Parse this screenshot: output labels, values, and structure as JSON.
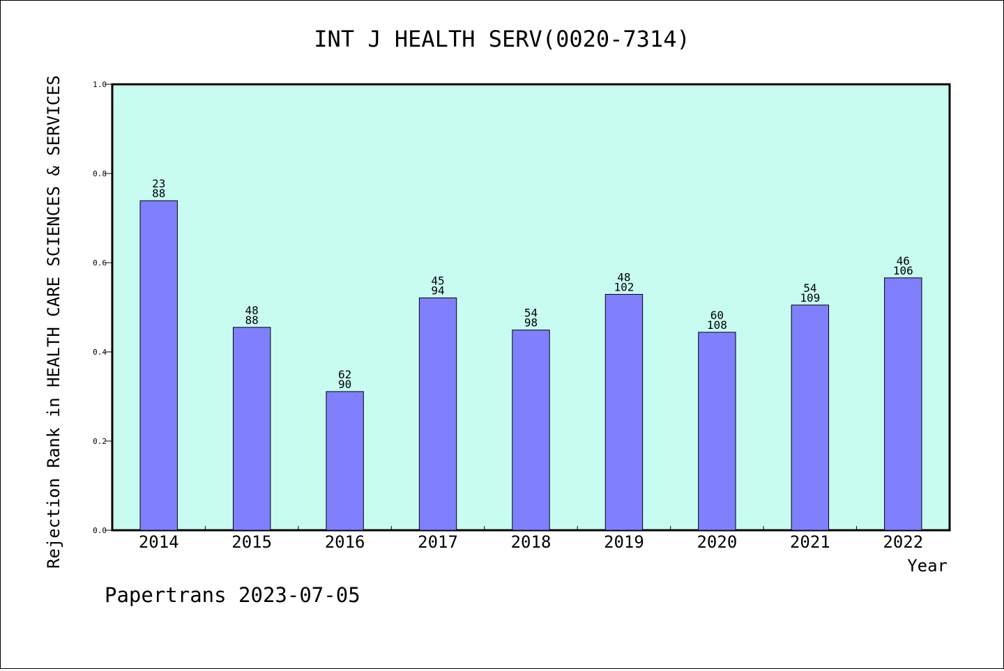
{
  "chart_data": {
    "type": "bar",
    "title": "INT J HEALTH SERV(0020-7314)",
    "xlabel": "Year",
    "ylabel": "Rejection Rank in HEALTH CARE SCIENCES & SERVICES",
    "footer": "Papertrans 2023-07-05",
    "categories": [
      "2014",
      "2015",
      "2016",
      "2017",
      "2018",
      "2019",
      "2020",
      "2021",
      "2022"
    ],
    "values": [
      0.739,
      0.455,
      0.311,
      0.521,
      0.449,
      0.529,
      0.444,
      0.505,
      0.566
    ],
    "rank_labels": [
      {
        "rank": "23",
        "total": "88"
      },
      {
        "rank": "48",
        "total": "88"
      },
      {
        "rank": "62",
        "total": "90"
      },
      {
        "rank": "45",
        "total": "94"
      },
      {
        "rank": "54",
        "total": "98"
      },
      {
        "rank": "48",
        "total": "102"
      },
      {
        "rank": "60",
        "total": "108"
      },
      {
        "rank": "54",
        "total": "109"
      },
      {
        "rank": "46",
        "total": "106"
      }
    ],
    "ylim": [
      0.0,
      1.0
    ],
    "yticks": [
      "0.0",
      "0.2",
      "0.4",
      "0.6",
      "0.8",
      "1.0"
    ],
    "grid": false,
    "legend": "none",
    "colors": {
      "plot_background": "#c8fcf0",
      "bar_fill": "#8080ff",
      "bar_stroke": "#000000",
      "axis": "#000000"
    }
  }
}
